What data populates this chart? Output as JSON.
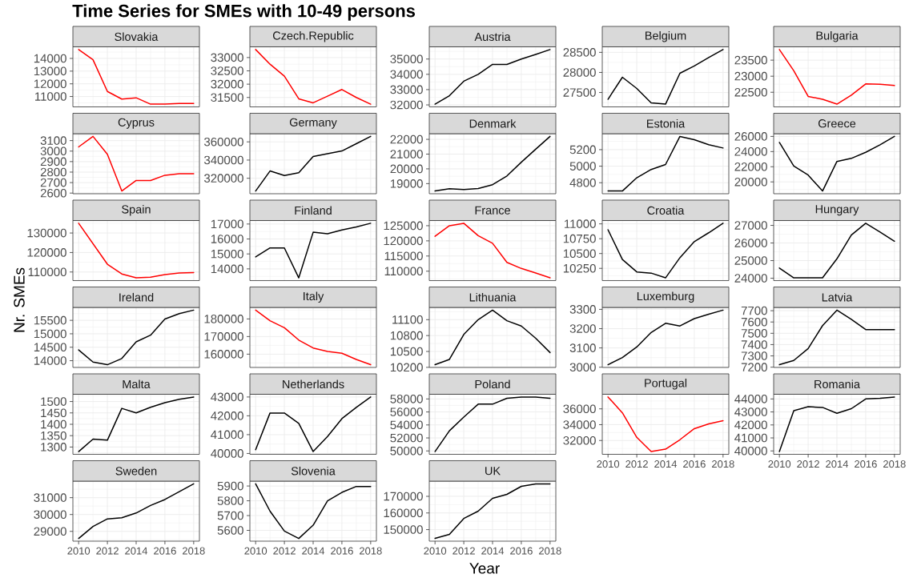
{
  "chart_data": [
    {
      "type": "line",
      "title": "Slovakia",
      "annotations": [
        "Time Series for SMEs with 10-49 persons"
      ],
      "x": [
        2010,
        2011,
        2012,
        2013,
        2014,
        2015,
        2016,
        2017,
        2018
      ],
      "series": [
        {
          "color": "#ff0000",
          "values": [
            14700,
            13900,
            11400,
            10800,
            10900,
            10400,
            10400,
            10450,
            10450
          ]
        }
      ],
      "xlim": [
        2009.6,
        2018.4
      ],
      "xticks": [
        2010,
        2012,
        2014,
        2016,
        2018
      ],
      "ylim": [
        10185,
        14915
      ],
      "yticks": [
        11000,
        12000,
        13000,
        14000
      ],
      "grid": true,
      "tick_labels": "y"
    },
    {
      "type": "line",
      "title": "Czech.Republic",
      "x": [
        2010,
        2011,
        2012,
        2013,
        2014,
        2015,
        2016,
        2017,
        2018
      ],
      "series": [
        {
          "color": "#ff0000",
          "values": [
            33300,
            32750,
            32300,
            31450,
            31300,
            31550,
            31800,
            31500,
            31250
          ]
        }
      ],
      "xlim": [
        2009.6,
        2018.4
      ],
      "xticks": [
        2010,
        2012,
        2014,
        2016,
        2018
      ],
      "ylim": [
        31147.5,
        33402.5
      ],
      "yticks": [
        31500,
        32000,
        32500,
        33000
      ],
      "grid": true,
      "tick_labels": "y"
    },
    {
      "type": "line",
      "title": "Austria",
      "x": [
        2010,
        2011,
        2012,
        2013,
        2014,
        2015,
        2016,
        2017,
        2018
      ],
      "series": [
        {
          "color": "#000000",
          "values": [
            32050,
            32600,
            33550,
            34000,
            34650,
            34650,
            35000,
            35300,
            35620
          ]
        }
      ],
      "xlim": [
        2009.6,
        2018.4
      ],
      "xticks": [
        2010,
        2012,
        2014,
        2016,
        2018
      ],
      "ylim": [
        31871.5,
        35798.5
      ],
      "yticks": [
        32000,
        33000,
        34000,
        35000
      ],
      "grid": true,
      "tick_labels": "y"
    },
    {
      "type": "line",
      "title": "Belgium",
      "x": [
        2010,
        2011,
        2012,
        2013,
        2014,
        2015,
        2016,
        2017,
        2018
      ],
      "series": [
        {
          "color": "#000000",
          "values": [
            27330,
            27880,
            27600,
            27240,
            27210,
            27980,
            28160,
            28370,
            28570
          ]
        }
      ],
      "xlim": [
        2009.6,
        2018.4
      ],
      "xticks": [
        2010,
        2012,
        2014,
        2016,
        2018
      ],
      "ylim": [
        27142,
        28638
      ],
      "yticks": [
        27500,
        28000,
        28500
      ],
      "grid": true,
      "tick_labels": "y"
    },
    {
      "type": "line",
      "title": "Bulgaria",
      "x": [
        2010,
        2011,
        2012,
        2013,
        2014,
        2015,
        2016,
        2017,
        2018
      ],
      "series": [
        {
          "color": "#ff0000",
          "values": [
            23830,
            23170,
            22370,
            22280,
            22130,
            22410,
            22760,
            22750,
            22710
          ]
        }
      ],
      "xlim": [
        2009.6,
        2018.4
      ],
      "xticks": [
        2010,
        2012,
        2014,
        2016,
        2018
      ],
      "ylim": [
        22045,
        23915
      ],
      "yticks": [
        22500,
        23000,
        23500
      ],
      "grid": true,
      "tick_labels": "y"
    },
    {
      "type": "line",
      "title": "Cyprus",
      "x": [
        2010,
        2011,
        2012,
        2013,
        2014,
        2015,
        2016,
        2017,
        2018
      ],
      "series": [
        {
          "color": "#ff0000",
          "values": [
            3040,
            3140,
            2970,
            2620,
            2720,
            2720,
            2770,
            2785,
            2785
          ]
        }
      ],
      "xlim": [
        2009.6,
        2018.4
      ],
      "xticks": [
        2010,
        2012,
        2014,
        2016,
        2018
      ],
      "ylim": [
        2594,
        3166
      ],
      "yticks": [
        2600,
        2700,
        2800,
        2900,
        3000,
        3100
      ],
      "grid": true,
      "tick_labels": "y"
    },
    {
      "type": "line",
      "title": "Germany",
      "x": [
        2010,
        2011,
        2012,
        2013,
        2014,
        2015,
        2016,
        2017,
        2018
      ],
      "series": [
        {
          "color": "#000000",
          "values": [
            306000,
            328000,
            323000,
            326000,
            344000,
            347000,
            350000,
            358000,
            366000
          ]
        }
      ],
      "xlim": [
        2009.6,
        2018.4
      ],
      "xticks": [
        2010,
        2012,
        2014,
        2016,
        2018
      ],
      "ylim": [
        303000,
        369000
      ],
      "yticks": [
        320000,
        340000,
        360000
      ],
      "grid": true,
      "tick_labels": "y"
    },
    {
      "type": "line",
      "title": "Denmark",
      "x": [
        2010,
        2011,
        2012,
        2013,
        2014,
        2015,
        2016,
        2017,
        2018
      ],
      "series": [
        {
          "color": "#000000",
          "values": [
            18500,
            18650,
            18600,
            18670,
            18930,
            19520,
            20450,
            21330,
            22200
          ]
        }
      ],
      "xlim": [
        2009.6,
        2018.4
      ],
      "xticks": [
        2010,
        2012,
        2014,
        2016,
        2018
      ],
      "ylim": [
        18315,
        22385
      ],
      "yticks": [
        19000,
        20000,
        21000,
        22000
      ],
      "grid": true,
      "tick_labels": "y"
    },
    {
      "type": "line",
      "title": "Estonia",
      "x": [
        2010,
        2011,
        2012,
        2013,
        2014,
        2015,
        2016,
        2017,
        2018
      ],
      "series": [
        {
          "color": "#000000",
          "values": [
            4700,
            4700,
            4860,
            4960,
            5020,
            5360,
            5320,
            5260,
            5220
          ]
        }
      ],
      "xlim": [
        2009.6,
        2018.4
      ],
      "xticks": [
        2010,
        2012,
        2014,
        2016,
        2018
      ],
      "ylim": [
        4667,
        5393
      ],
      "yticks": [
        4800,
        5000,
        5200
      ],
      "grid": true,
      "tick_labels": "y"
    },
    {
      "type": "line",
      "title": "Greece",
      "x": [
        2010,
        2011,
        2012,
        2013,
        2014,
        2015,
        2016,
        2017,
        2018
      ],
      "series": [
        {
          "color": "#000000",
          "values": [
            25200,
            22100,
            20900,
            18800,
            22700,
            23100,
            23900,
            24900,
            26000
          ]
        }
      ],
      "xlim": [
        2009.6,
        2018.4
      ],
      "xticks": [
        2010,
        2012,
        2014,
        2016,
        2018
      ],
      "ylim": [
        18440,
        26360
      ],
      "yticks": [
        20000,
        22000,
        24000,
        26000
      ],
      "grid": true,
      "tick_labels": "y"
    },
    {
      "type": "line",
      "title": "Spain",
      "x": [
        2010,
        2011,
        2012,
        2013,
        2014,
        2015,
        2016,
        2017,
        2018
      ],
      "series": [
        {
          "color": "#ff0000",
          "values": [
            135000,
            124500,
            114000,
            109000,
            107000,
            107300,
            108700,
            109500,
            109700
          ]
        }
      ],
      "xlim": [
        2009.6,
        2018.4
      ],
      "xticks": [
        2010,
        2012,
        2014,
        2016,
        2018
      ],
      "ylim": [
        105600,
        136400
      ],
      "yticks": [
        110000,
        120000,
        130000
      ],
      "grid": true,
      "tick_labels": "y"
    },
    {
      "type": "line",
      "title": "Finland",
      "x": [
        2010,
        2011,
        2012,
        2013,
        2014,
        2015,
        2016,
        2017,
        2018
      ],
      "series": [
        {
          "color": "#000000",
          "values": [
            14800,
            15400,
            15400,
            13400,
            16450,
            16350,
            16600,
            16800,
            17050
          ]
        }
      ],
      "xlim": [
        2009.6,
        2018.4
      ],
      "xticks": [
        2010,
        2012,
        2014,
        2016,
        2018
      ],
      "ylim": [
        13217.5,
        17232.5
      ],
      "yticks": [
        14000,
        15000,
        16000,
        17000
      ],
      "grid": true,
      "tick_labels": "y"
    },
    {
      "type": "line",
      "title": "France",
      "x": [
        2010,
        2011,
        2012,
        2013,
        2014,
        2015,
        2016,
        2017,
        2018
      ],
      "series": [
        {
          "color": "#ff0000",
          "values": [
            121500,
            125000,
            125800,
            121700,
            119200,
            112900,
            110900,
            109400,
            107800
          ]
        }
      ],
      "xlim": [
        2009.6,
        2018.4
      ],
      "xticks": [
        2010,
        2012,
        2014,
        2016,
        2018
      ],
      "ylim": [
        106900,
        126700
      ],
      "yticks": [
        110000,
        115000,
        120000,
        125000
      ],
      "grid": true,
      "tick_labels": "y"
    },
    {
      "type": "line",
      "title": "Croatia",
      "x": [
        2010,
        2011,
        2012,
        2013,
        2014,
        2015,
        2016,
        2017,
        2018
      ],
      "series": [
        {
          "color": "#000000",
          "values": [
            10900,
            10400,
            10190,
            10170,
            10090,
            10430,
            10700,
            10850,
            11010
          ]
        }
      ],
      "xlim": [
        2009.6,
        2018.4
      ],
      "xticks": [
        2010,
        2012,
        2014,
        2016,
        2018
      ],
      "ylim": [
        10044,
        11056
      ],
      "yticks": [
        10250,
        10500,
        10750,
        11000
      ],
      "grid": true,
      "tick_labels": "y"
    },
    {
      "type": "line",
      "title": "Hungary",
      "x": [
        2010,
        2011,
        2012,
        2013,
        2014,
        2015,
        2016,
        2017,
        2018
      ],
      "series": [
        {
          "color": "#000000",
          "values": [
            24580,
            24020,
            24020,
            24020,
            25100,
            26450,
            27120,
            26620,
            26100
          ]
        }
      ],
      "xlim": [
        2009.6,
        2018.4
      ],
      "xticks": [
        2010,
        2012,
        2014,
        2016,
        2018
      ],
      "ylim": [
        23865,
        27275
      ],
      "yticks": [
        24000,
        25000,
        26000,
        27000
      ],
      "grid": true,
      "tick_labels": "y"
    },
    {
      "type": "line",
      "title": "Ireland",
      "ylabel": "Nr. SMEs",
      "x": [
        2010,
        2011,
        2012,
        2013,
        2014,
        2015,
        2016,
        2017,
        2018
      ],
      "series": [
        {
          "color": "#000000",
          "values": [
            14400,
            13950,
            13850,
            14080,
            14700,
            14950,
            15550,
            15750,
            15880
          ]
        }
      ],
      "xlim": [
        2009.6,
        2018.4
      ],
      "xticks": [
        2010,
        2012,
        2014,
        2016,
        2018
      ],
      "ylim": [
        13748.5,
        15981.5
      ],
      "yticks": [
        14000,
        14500,
        15000,
        15500
      ],
      "grid": true,
      "tick_labels": "y"
    },
    {
      "type": "line",
      "title": "Italy",
      "x": [
        2010,
        2011,
        2012,
        2013,
        2014,
        2015,
        2016,
        2017,
        2018
      ],
      "series": [
        {
          "color": "#ff0000",
          "values": [
            185000,
            179000,
            175000,
            168000,
            163500,
            161500,
            160500,
            157000,
            154000
          ]
        }
      ],
      "xlim": [
        2009.6,
        2018.4
      ],
      "xticks": [
        2010,
        2012,
        2014,
        2016,
        2018
      ],
      "ylim": [
        152450,
        186550
      ],
      "yticks": [
        160000,
        170000,
        180000
      ],
      "grid": true,
      "tick_labels": "y"
    },
    {
      "type": "line",
      "title": "Lithuania",
      "x": [
        2010,
        2011,
        2012,
        2013,
        2014,
        2015,
        2016,
        2017,
        2018
      ],
      "series": [
        {
          "color": "#000000",
          "values": [
            10250,
            10350,
            10820,
            11100,
            11280,
            11080,
            10980,
            10750,
            10480
          ]
        }
      ],
      "xlim": [
        2009.6,
        2018.4
      ],
      "xticks": [
        2010,
        2012,
        2014,
        2016,
        2018
      ],
      "ylim": [
        10198.5,
        11331.5
      ],
      "yticks": [
        10200,
        10500,
        10800,
        11100
      ],
      "grid": true,
      "tick_labels": "y"
    },
    {
      "type": "line",
      "title": "Luxemburg",
      "x": [
        2010,
        2011,
        2012,
        2013,
        2014,
        2015,
        2016,
        2017,
        2018
      ],
      "series": [
        {
          "color": "#000000",
          "values": [
            3013,
            3050,
            3105,
            3180,
            3228,
            3214,
            3252,
            3275,
            3296
          ]
        }
      ],
      "xlim": [
        2009.6,
        2018.4
      ],
      "xticks": [
        2010,
        2012,
        2014,
        2016,
        2018
      ],
      "ylim": [
        2998.85,
        3310.15
      ],
      "yticks": [
        3000,
        3100,
        3200,
        3300
      ],
      "grid": true,
      "tick_labels": "y"
    },
    {
      "type": "line",
      "title": "Latvia",
      "x": [
        2010,
        2011,
        2012,
        2013,
        2014,
        2015,
        2016,
        2017,
        2018
      ],
      "series": [
        {
          "color": "#000000",
          "values": [
            7222,
            7260,
            7365,
            7568,
            7705,
            7624,
            7533,
            7533,
            7533
          ]
        }
      ],
      "xlim": [
        2009.6,
        2018.4
      ],
      "xticks": [
        2010,
        2012,
        2014,
        2016,
        2018
      ],
      "ylim": [
        7197.85,
        7729.15
      ],
      "yticks": [
        7200,
        7300,
        7400,
        7500,
        7600,
        7700
      ],
      "grid": true,
      "tick_labels": "y"
    },
    {
      "type": "line",
      "title": "Malta",
      "x": [
        2010,
        2011,
        2012,
        2013,
        2014,
        2015,
        2016,
        2017,
        2018
      ],
      "series": [
        {
          "color": "#000000",
          "values": [
            1280,
            1335,
            1330,
            1470,
            1450,
            1475,
            1495,
            1510,
            1520
          ]
        }
      ],
      "xlim": [
        2009.6,
        2018.4
      ],
      "xticks": [
        2010,
        2012,
        2014,
        2016,
        2018
      ],
      "ylim": [
        1268,
        1532
      ],
      "yticks": [
        1300,
        1350,
        1400,
        1450,
        1500
      ],
      "grid": true,
      "tick_labels": "y"
    },
    {
      "type": "line",
      "title": "Netherlands",
      "x": [
        2010,
        2011,
        2012,
        2013,
        2014,
        2015,
        2016,
        2017,
        2018
      ],
      "series": [
        {
          "color": "#000000",
          "values": [
            40200,
            42150,
            42150,
            41600,
            40100,
            40900,
            41850,
            42450,
            43000
          ]
        }
      ],
      "xlim": [
        2009.6,
        2018.4
      ],
      "xticks": [
        2010,
        2012,
        2014,
        2016,
        2018
      ],
      "ylim": [
        39955,
        43145
      ],
      "yticks": [
        40000,
        41000,
        42000,
        43000
      ],
      "grid": true,
      "tick_labels": "y"
    },
    {
      "type": "line",
      "title": "Poland",
      "x": [
        2010,
        2011,
        2012,
        2013,
        2014,
        2015,
        2016,
        2017,
        2018
      ],
      "series": [
        {
          "color": "#000000",
          "values": [
            49900,
            53100,
            55200,
            57200,
            57200,
            58100,
            58300,
            58300,
            58100
          ]
        }
      ],
      "xlim": [
        2009.6,
        2018.4
      ],
      "xticks": [
        2010,
        2012,
        2014,
        2016,
        2018
      ],
      "ylim": [
        49480,
        58720
      ],
      "yticks": [
        50000,
        52000,
        54000,
        56000,
        58000
      ],
      "grid": true,
      "tick_labels": "y"
    },
    {
      "type": "line",
      "title": "Portugal",
      "x": [
        2010,
        2011,
        2012,
        2013,
        2014,
        2015,
        2016,
        2017,
        2018
      ],
      "series": [
        {
          "color": "#ff0000",
          "values": [
            37500,
            35500,
            32400,
            30600,
            30900,
            32100,
            33500,
            34100,
            34500
          ]
        }
      ],
      "xlim": [
        2009.6,
        2018.4
      ],
      "xticks": [
        2010,
        2012,
        2014,
        2016,
        2018
      ],
      "ylim": [
        30255,
        37845
      ],
      "yticks": [
        32000,
        34000,
        36000
      ],
      "grid": true
    },
    {
      "type": "line",
      "title": "Romania",
      "x": [
        2010,
        2011,
        2012,
        2013,
        2014,
        2015,
        2016,
        2017,
        2018
      ],
      "series": [
        {
          "color": "#000000",
          "values": [
            39950,
            43100,
            43400,
            43350,
            42900,
            43250,
            44000,
            44050,
            44150
          ]
        }
      ],
      "xlim": [
        2009.6,
        2018.4
      ],
      "xticks": [
        2010,
        2012,
        2014,
        2016,
        2018
      ],
      "ylim": [
        39740,
        44360
      ],
      "yticks": [
        40000,
        41000,
        42000,
        43000,
        44000
      ],
      "grid": true
    },
    {
      "type": "line",
      "title": "Sweden",
      "x": [
        2010,
        2011,
        2012,
        2013,
        2014,
        2015,
        2016,
        2017,
        2018
      ],
      "series": [
        {
          "color": "#000000",
          "values": [
            28580,
            29290,
            29740,
            29810,
            30090,
            30540,
            30890,
            31360,
            31820
          ]
        }
      ],
      "xlim": [
        2009.6,
        2018.4
      ],
      "xticks": [
        2010,
        2012,
        2014,
        2016,
        2018
      ],
      "ylim": [
        28418,
        31982
      ],
      "yticks": [
        29000,
        30000,
        31000
      ],
      "grid": true
    },
    {
      "type": "line",
      "title": "Slovenia",
      "x": [
        2010,
        2011,
        2012,
        2013,
        2014,
        2015,
        2016,
        2017,
        2018
      ],
      "series": [
        {
          "color": "#000000",
          "values": [
            5915,
            5730,
            5595,
            5545,
            5635,
            5800,
            5857,
            5897,
            5897
          ]
        }
      ],
      "xlim": [
        2009.6,
        2018.4
      ],
      "xticks": [
        2010,
        2012,
        2014,
        2016,
        2018
      ],
      "ylim": [
        5527,
        5933
      ],
      "yticks": [
        5600,
        5700,
        5800,
        5900
      ],
      "grid": true
    },
    {
      "type": "line",
      "title": "UK",
      "xlabel": "Year",
      "x": [
        2010,
        2011,
        2012,
        2013,
        2014,
        2015,
        2016,
        2017,
        2018
      ],
      "series": [
        {
          "color": "#000000",
          "values": [
            144700,
            147100,
            156700,
            161100,
            168800,
            171200,
            176000,
            177500,
            177500
          ]
        }
      ],
      "xlim": [
        2009.6,
        2018.4
      ],
      "xticks": [
        2010,
        2012,
        2014,
        2016,
        2018
      ],
      "ylim": [
        143060,
        179140
      ],
      "yticks": [
        150000,
        160000,
        170000
      ],
      "grid": true
    }
  ]
}
